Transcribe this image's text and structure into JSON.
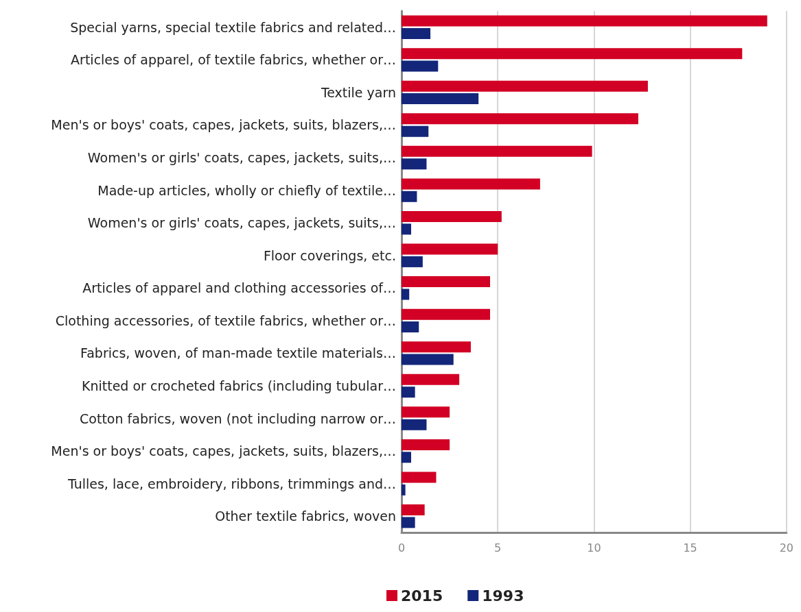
{
  "chart_data": {
    "type": "bar",
    "orientation": "horizontal",
    "categories": [
      "Special yarns, special textile fabrics and related…",
      "Articles of apparel, of textile fabrics, whether or…",
      "Textile yarn",
      "Men's or boys' coats, capes, jackets, suits, blazers,…",
      "Women's or girls' coats, capes, jackets, suits,…",
      "Made-up articles, wholly or chiefly of textile…",
      "Women's or girls' coats, capes, jackets, suits,…",
      "Floor coverings, etc.",
      "Articles of apparel and clothing accessories of…",
      "Clothing accessories, of textile fabrics, whether or…",
      "Fabrics, woven, of man-made textile materials…",
      "Knitted or crocheted fabrics (including tubular…",
      "Cotton fabrics, woven (not including narrow or…",
      "Men's or boys' coats, capes, jackets, suits, blazers,…",
      "Tulles, lace, embroidery, ribbons, trimmings and…",
      "Other textile fabrics, woven"
    ],
    "series": [
      {
        "name": "2015",
        "color": "#d20024",
        "values": [
          19.0,
          17.7,
          12.8,
          12.3,
          9.9,
          7.2,
          5.2,
          5.0,
          4.6,
          4.6,
          3.6,
          3.0,
          2.5,
          2.5,
          1.8,
          1.2
        ]
      },
      {
        "name": "1993",
        "color": "#13267a",
        "values": [
          1.5,
          1.9,
          4.0,
          1.4,
          1.3,
          0.8,
          0.5,
          1.1,
          0.4,
          0.9,
          2.7,
          0.7,
          1.3,
          0.5,
          0.2,
          0.7
        ]
      }
    ],
    "xlim": [
      0,
      20
    ],
    "xticks": [
      0,
      5,
      10,
      15,
      20
    ],
    "grid": "x",
    "legend": "bottom"
  }
}
